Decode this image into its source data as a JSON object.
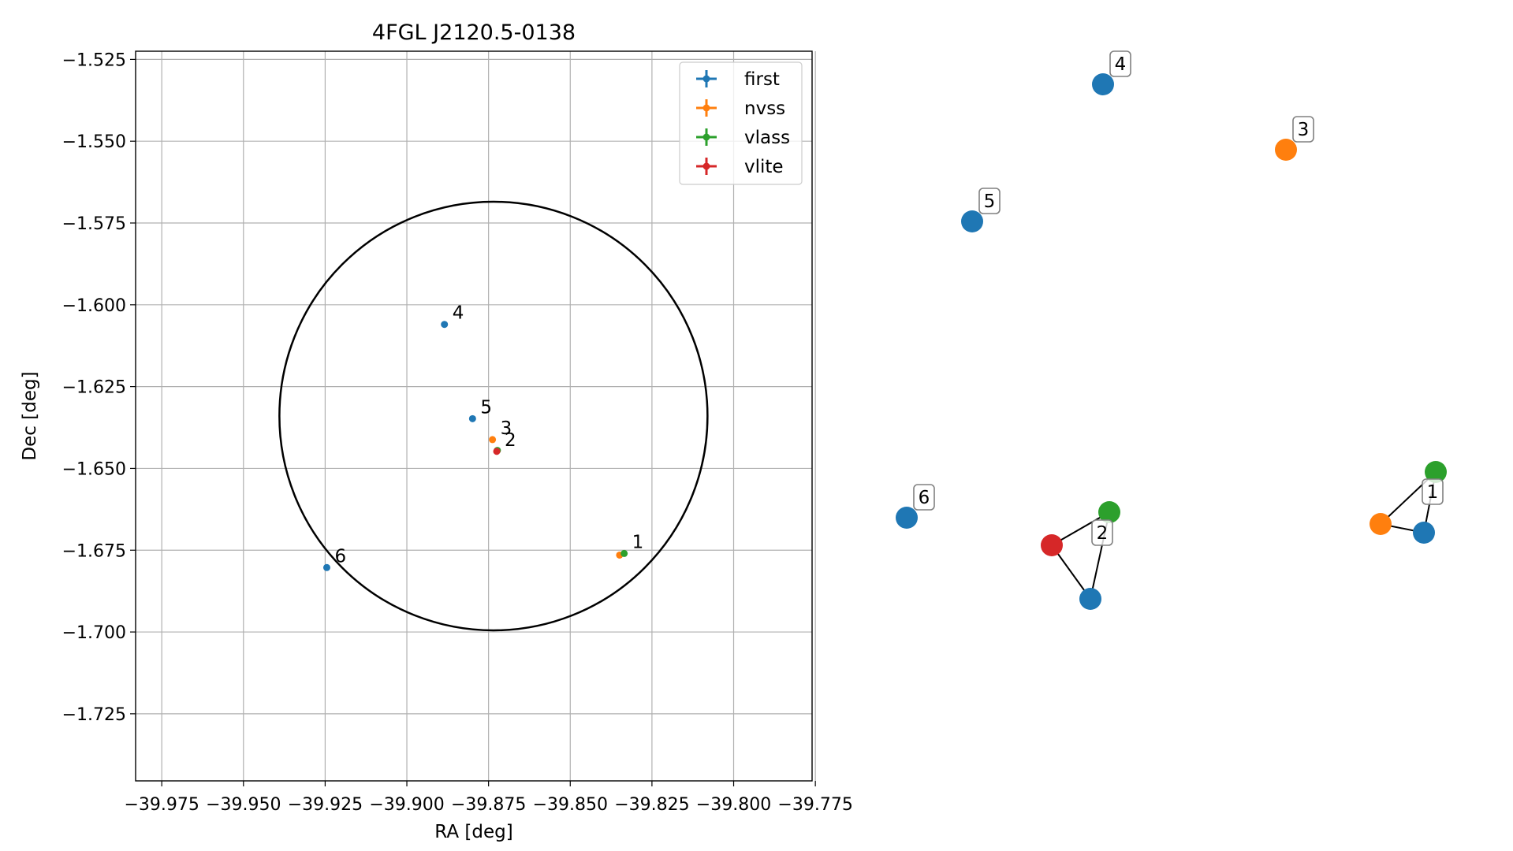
{
  "chart_data": [
    {
      "type": "scatter",
      "title": "4FGL J2120.5-0138",
      "xlabel": "RA [deg]",
      "ylabel": "Dec [deg]",
      "xlim": [
        -39.983,
        -39.776
      ],
      "ylim": [
        -1.7455,
        -1.5225
      ],
      "grid": true,
      "legend_position": "top-right",
      "x_ticks": [
        -39.975,
        -39.95,
        -39.925,
        -39.9,
        -39.875,
        -39.85,
        -39.825,
        -39.8,
        -39.775
      ],
      "x_tick_labels": [
        "−39.975",
        "−39.950",
        "−39.925",
        "−39.900",
        "−39.875",
        "−39.850",
        "−39.825",
        "−39.800",
        "−39.775"
      ],
      "y_ticks": [
        -1.525,
        -1.55,
        -1.575,
        -1.6,
        -1.625,
        -1.65,
        -1.675,
        -1.7,
        -1.725
      ],
      "y_tick_labels": [
        "−1.525",
        "−1.550",
        "−1.575",
        "−1.600",
        "−1.625",
        "−1.650",
        "−1.675",
        "−1.700",
        "−1.725"
      ],
      "circle": {
        "center": [
          -39.8735,
          -1.634
        ],
        "radius": 0.0655,
        "color": "#000000"
      },
      "series": [
        {
          "name": "first",
          "color": "#1f77b4",
          "points": [
            {
              "x": -39.8885,
              "y": -1.606,
              "label": "4"
            },
            {
              "x": -39.8799,
              "y": -1.6348,
              "label": "5"
            },
            {
              "x": -39.9245,
              "y": -1.6803,
              "label": "6"
            }
          ]
        },
        {
          "name": "nvss",
          "color": "#ff7f0e",
          "points": [
            {
              "x": -39.8738,
              "y": -1.6412,
              "label": "3"
            },
            {
              "x": -39.8349,
              "y": -1.6765,
              "label": ""
            }
          ]
        },
        {
          "name": "vlass",
          "color": "#2ca02c",
          "points": [
            {
              "x": -39.8335,
              "y": -1.676,
              "label": "1"
            },
            {
              "x": -39.8723,
              "y": -1.6445,
              "label": ""
            }
          ]
        },
        {
          "name": "vlite",
          "color": "#d62728",
          "points": [
            {
              "x": -39.8725,
              "y": -1.6448,
              "label": "2"
            }
          ]
        }
      ]
    },
    {
      "type": "network",
      "title": "",
      "nodes": [
        {
          "id": "4",
          "color": "#1f77b4",
          "label": "4"
        },
        {
          "id": "3",
          "color": "#ff7f0e",
          "label": "3"
        },
        {
          "id": "5",
          "color": "#1f77b4",
          "label": "5"
        },
        {
          "id": "6",
          "color": "#1f77b4",
          "label": "6"
        },
        {
          "id": "2v",
          "color": "#2ca02c",
          "label": ""
        },
        {
          "id": "2r",
          "color": "#d62728",
          "label": ""
        },
        {
          "id": "2b",
          "color": "#1f77b4",
          "label": ""
        },
        {
          "id": "2",
          "color": "",
          "label": "2"
        },
        {
          "id": "1g",
          "color": "#2ca02c",
          "label": ""
        },
        {
          "id": "1o",
          "color": "#ff7f0e",
          "label": ""
        },
        {
          "id": "1b",
          "color": "#1f77b4",
          "label": ""
        },
        {
          "id": "1",
          "color": "",
          "label": "1"
        }
      ],
      "edges": [
        [
          "2v",
          "2r"
        ],
        [
          "2r",
          "2b"
        ],
        [
          "2b",
          "2v"
        ],
        [
          "1g",
          "1o"
        ],
        [
          "1o",
          "1b"
        ],
        [
          "1b",
          "1g"
        ]
      ]
    }
  ]
}
